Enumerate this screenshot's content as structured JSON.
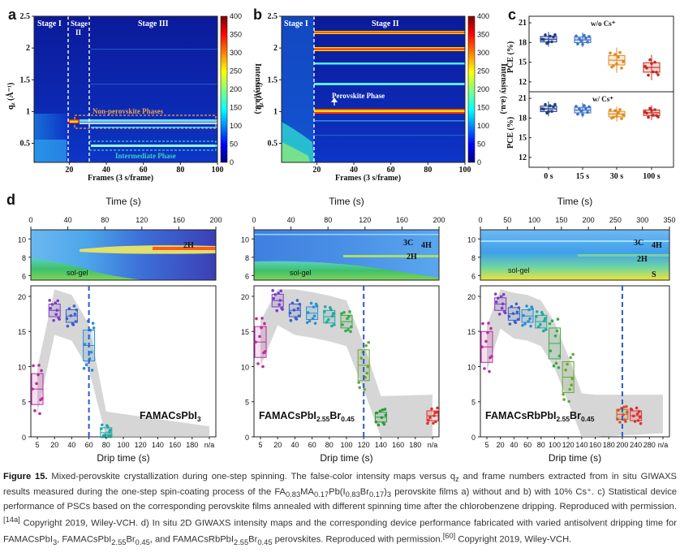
{
  "figure": {
    "panel_a": {
      "label": "a",
      "stages": [
        "Stage I",
        "Stage\nII",
        "Stage III"
      ],
      "xlabel": "Frames (3 s/frame)",
      "ylabel": "q",
      "ylabel_sub": "z",
      "ylabel_unit": " (Å⁻¹)",
      "xticks": [
        "20",
        "40",
        "60",
        "80",
        "100"
      ],
      "yticks": [
        "0.5",
        "1",
        "1.5",
        "2",
        "2.5"
      ],
      "annotations": [
        "Non-perovskite Phases",
        "Intermediate Phase"
      ]
    },
    "panel_b": {
      "label": "b",
      "stages": [
        "Stage I",
        "Stage II"
      ],
      "xlabel": "Frames (3 s/frame)",
      "ylabel": "q",
      "ylabel_sub": "z",
      "ylabel_unit": " (Å⁻¹)",
      "xticks": [
        "20",
        "40",
        "60",
        "80",
        "100"
      ],
      "yticks": [
        "0.5",
        "1",
        "1.5",
        "2",
        "2.5"
      ],
      "annotations": [
        "Perovskite Phase"
      ]
    },
    "colorbar": {
      "label": "Intensity (a.u.)",
      "ticks": [
        "0",
        "50",
        "100",
        "150",
        "200",
        "250",
        "300",
        "350",
        "400"
      ]
    },
    "panel_c": {
      "label": "c",
      "ylabel": "PCE (%)",
      "top_title": "w/o Cs⁺",
      "bottom_title": "w/ Cs⁺",
      "yticks": [
        "12",
        "15",
        "18",
        "21"
      ],
      "categories": [
        "0 s",
        "15 s",
        "30 s",
        "100 s"
      ],
      "colors": [
        "#1f3f8a",
        "#3b73c9",
        "#e08a1e",
        "#c8281e"
      ],
      "wo_cs_median": [
        18.5,
        18.4,
        15.3,
        14.2
      ],
      "w_cs_median": [
        19.4,
        19.2,
        18.6,
        18.8
      ]
    },
    "panel_d": {
      "label": "d",
      "time_label": "Time (s)",
      "drip_label": "Drip time (s)",
      "subpanels": [
        {
          "name": "FAMACsPbI",
          "name_sub": "3",
          "name_rest": "",
          "time_ticks": [
            "0",
            "40",
            "80",
            "120",
            "160",
            "200"
          ],
          "map_labels": [
            "2H",
            "sol-gel"
          ],
          "drip_ticks": [
            "5",
            "20",
            "40",
            "60",
            "80",
            "100",
            "120",
            "140",
            "160",
            "180",
            "n/a"
          ],
          "y_ticks": [
            "0",
            "5",
            "10",
            "15",
            "20"
          ],
          "map_y_ticks": [
            "6",
            "8",
            "10"
          ]
        },
        {
          "name": "FAMACsPbI",
          "name_sub": "2.55",
          "name_rest": "Br",
          "name_sub2": "0.45",
          "time_ticks": [
            "0",
            "40",
            "80",
            "120",
            "160",
            "200"
          ],
          "map_labels": [
            "3C",
            "4H",
            "2H",
            "sol-gel"
          ],
          "drip_ticks": [
            "5",
            "20",
            "40",
            "60",
            "80",
            "100",
            "120",
            "140",
            "160",
            "180",
            "n/a"
          ],
          "y_ticks": [
            "0",
            "5",
            "10",
            "15",
            "20"
          ],
          "map_y_ticks": [
            "6",
            "8",
            "10"
          ]
        },
        {
          "name": "FAMACsRbPbI",
          "name_sub": "2.55",
          "name_rest": "Br",
          "name_sub2": "0.45",
          "time_ticks": [
            "0",
            "50",
            "100",
            "150",
            "200",
            "250",
            "300",
            "350"
          ],
          "map_labels": [
            "3C",
            "4H",
            "2H",
            "S",
            "sol-gel"
          ],
          "drip_ticks": [
            "5",
            "20",
            "40",
            "60",
            "80",
            "100",
            "120",
            "140",
            "160",
            "180",
            "200",
            "240",
            "280",
            "n/a"
          ],
          "y_ticks": [
            "0",
            "5",
            "10",
            "15",
            "20"
          ],
          "map_y_ticks": [
            "6",
            "8",
            "10"
          ]
        }
      ]
    }
  },
  "caption": {
    "title": "Figure 15.",
    "line1": "Mixed-perovskite crystallization during one-step spinning. The false-color intensity maps versus q",
    "line1_sub": "z",
    "line1b": " and frame numbers extracted from in situ",
    "line2": "GIWAXS results measured during the one-step spin-coating process of the FA",
    "line2_rest": " perovskite films a) without and b) with 10% Cs⁺.",
    "formula": [
      "0.83",
      "MA",
      "0.17",
      "Pb(I",
      "0.83",
      "Br",
      "0.17",
      ")",
      "3"
    ],
    "line3": "c) Statistical device performance of PSCs based on the corresponding perovskite films annealed with different spinning time after the chlorobenzene dripping. Reproduced with permission.",
    "ref1": "[14a]",
    "line3b": " Copyright 2019, Wiley-VCH. d) In situ 2D GIWAXS intensity maps and the corresponding device performance fabricated with varied antisolvent dripping time for FAMACsPbI",
    "line4": ", FAMACsPbI",
    "line4b": "Br",
    "line4c": ", and FAMACsRbPbI",
    "line4d": "Br",
    "line4e": " perovskites. Reproduced with permission.",
    "ref2": "[60]",
    "line4f": " Copyright 2019, Wiley-VCH."
  }
}
